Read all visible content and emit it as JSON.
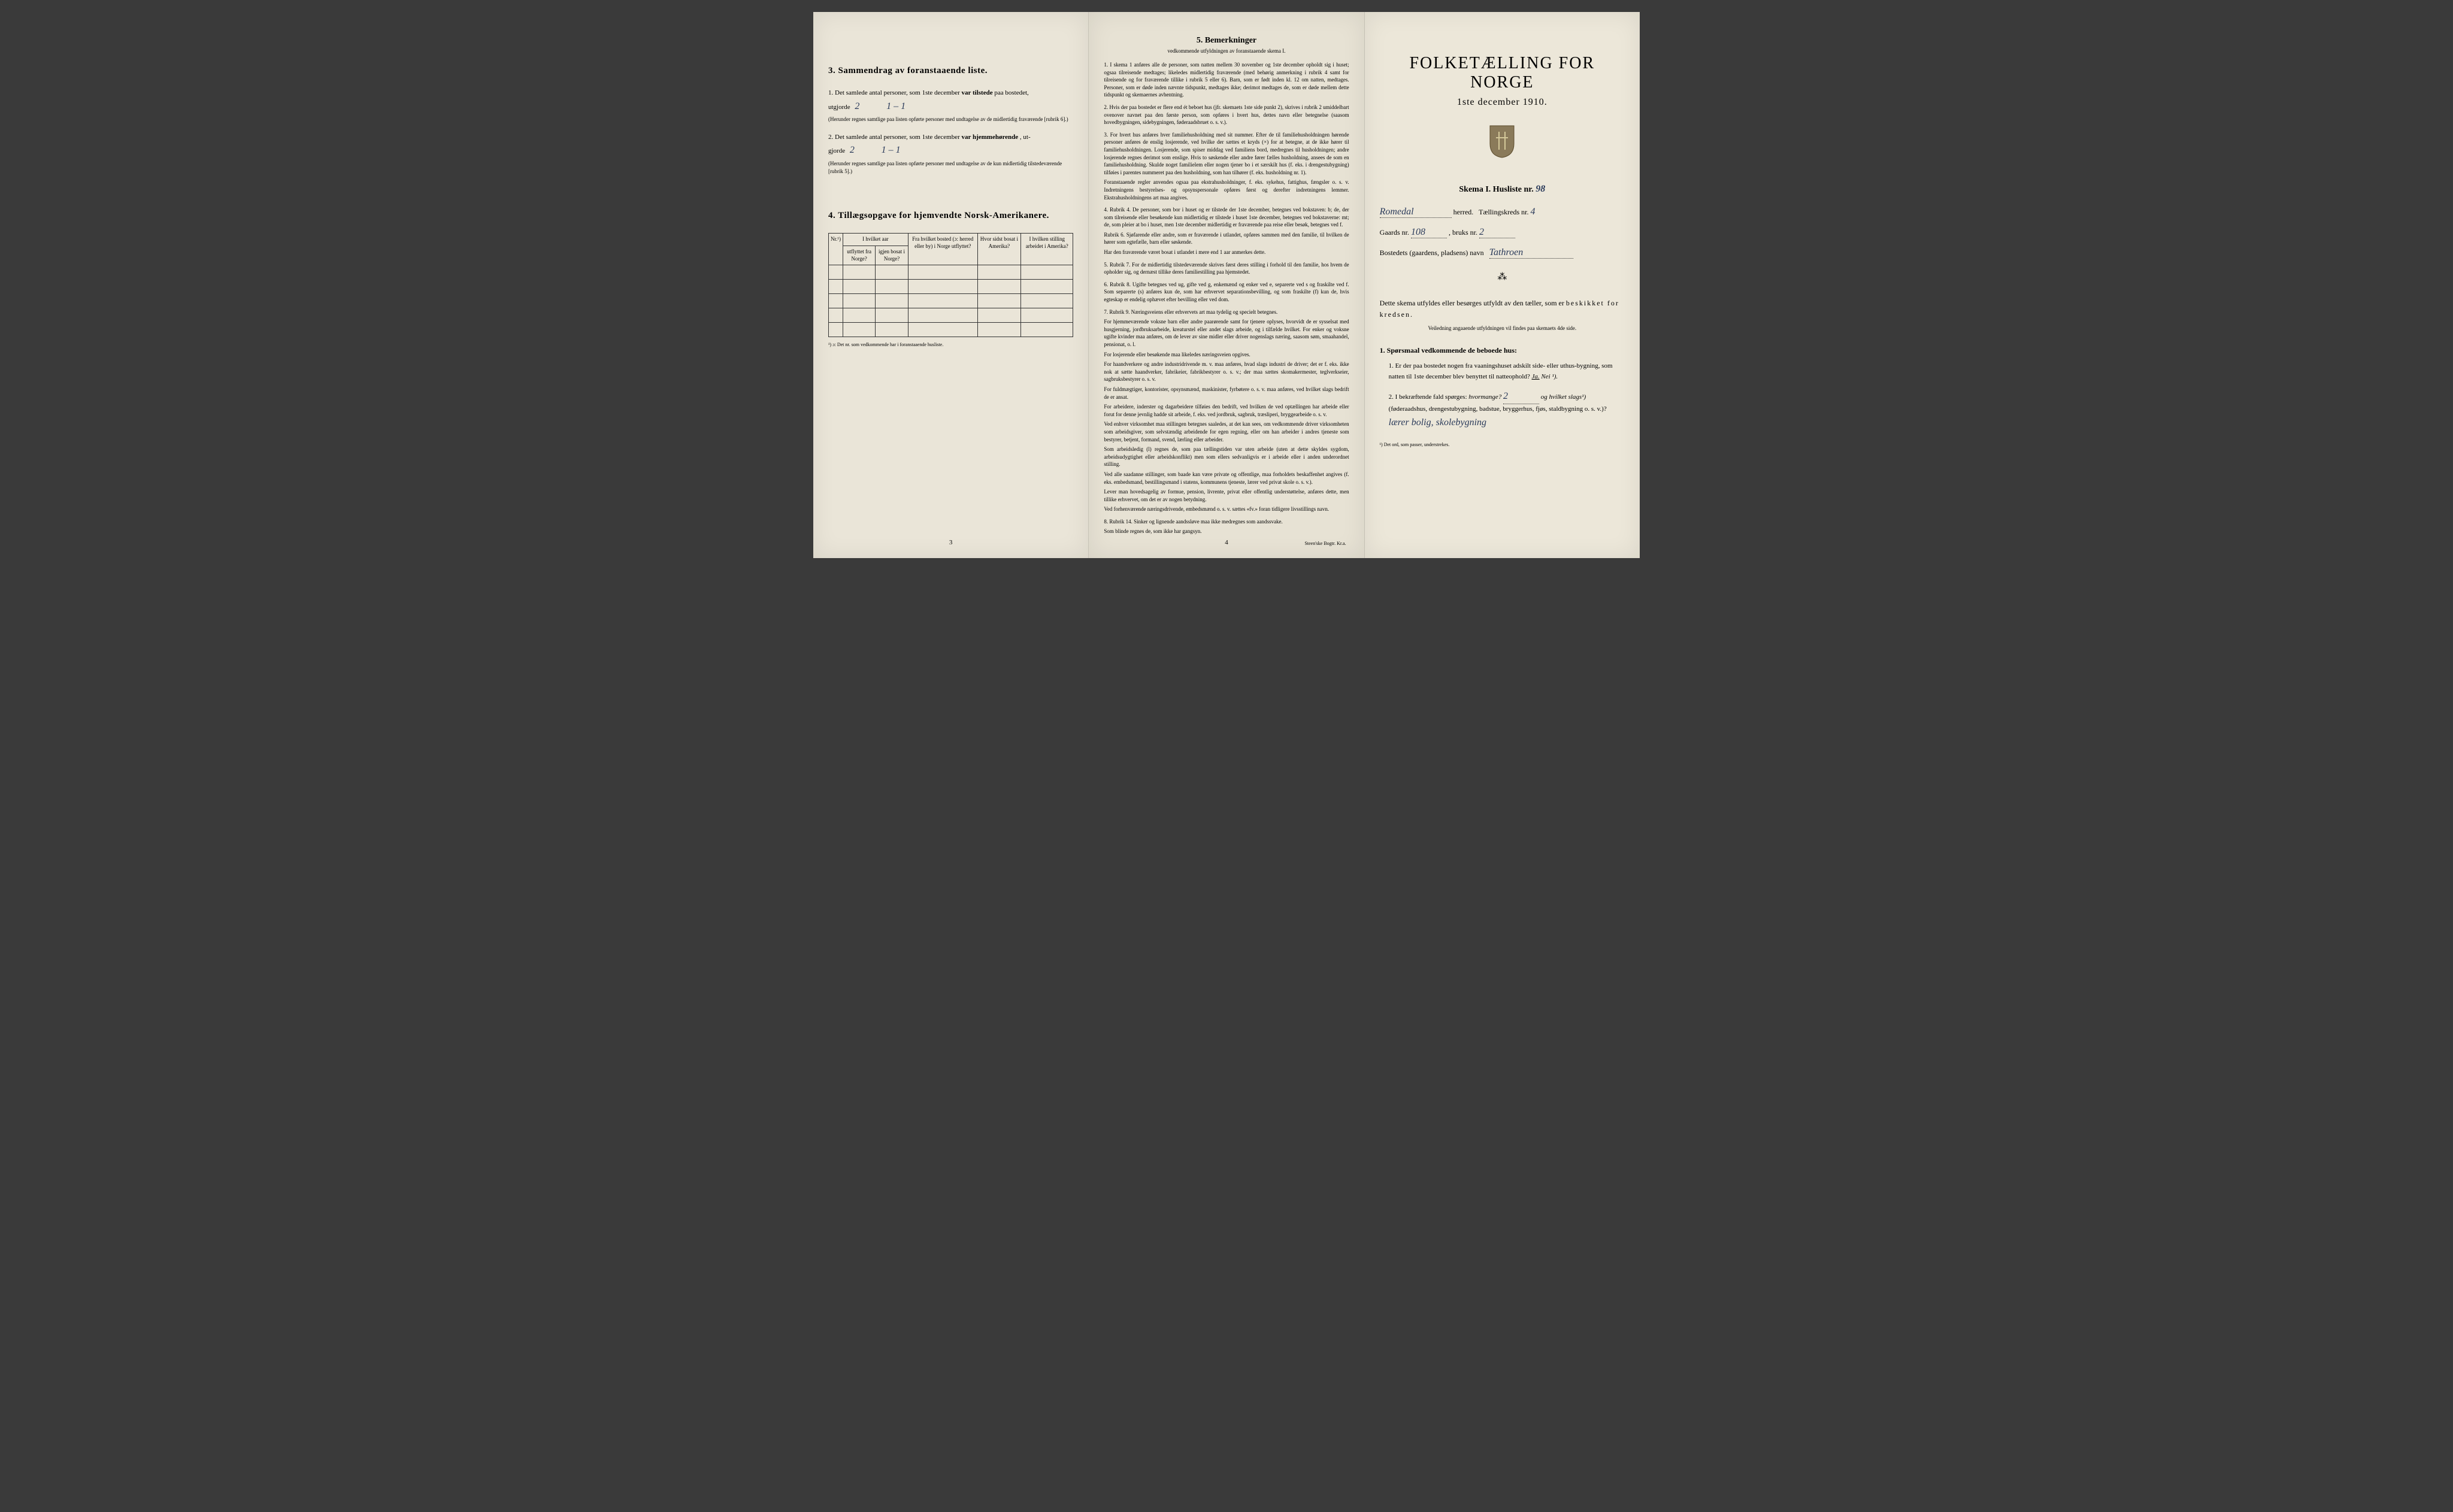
{
  "panel1": {
    "section3": {
      "heading": "3.  Sammendrag av foranstaaende liste.",
      "item1_prefix": "1.  Det samlede antal personer, som 1ste december ",
      "item1_bold": "var tilstede",
      "item1_suffix": " paa bostedet,",
      "item1_utgjorde": "utgjorde",
      "item1_val_a": "2",
      "item1_val_b": "1 – 1",
      "item1_note": "(Herunder regnes samtlige paa listen opførte personer med undtagelse av de midlertidig fraværende [rubrik 6].)",
      "item2_prefix": "2.  Det samlede antal personer, som 1ste december ",
      "item2_bold": "var hjemmehørende",
      "item2_suffix": ", ut-",
      "item2_gjorde": "gjorde",
      "item2_val_a": "2",
      "item2_val_b": "1 – 1",
      "item2_note": "(Herunder regnes samtlige paa listen opførte personer med undtagelse av de kun midlertidig tilstedeværende [rubrik 5].)"
    },
    "section4": {
      "heading": "4.  Tillægsopgave for hjemvendte Norsk-Amerikanere.",
      "col0": "Nr.¹)",
      "col1_a": "I hvilket aar",
      "col1_b": "utflyttet fra Norge?",
      "col1_c": "igjen bosat i Norge?",
      "col2": "Fra hvilket bosted (ɔ: herred eller by) i Norge utflyttet?",
      "col3": "Hvor sidst bosat i Amerika?",
      "col4": "I hvilken stilling arbeidet i Amerika?",
      "footnote": "¹) ɔ: Det nr. som vedkommende har i foranstaaende husliste."
    },
    "page_num": "3"
  },
  "panel2": {
    "heading": "5.  Bemerkninger",
    "subheading": "vedkommende utfyldningen av foranstaaende skema I.",
    "remarks": [
      {
        "n": "1.",
        "t": "I skema 1 anføres alle de personer, som natten mellem 30 november og 1ste december opholdt sig i huset; ogsaa tilreisende medtages; likeledes midlertidig fraværende (med behørig anmerkning i rubrik 4 samt for tilreisende og for fraværende tillike i rubrik 5 eller 6). Barn, som er født inden kl. 12 om natten, medtages. Personer, som er døde inden nævnte tidspunkt, medtages ikke; derimot medtages de, som er døde mellem dette tidspunkt og skemaernes avhentning."
      },
      {
        "n": "2.",
        "t": "Hvis der paa bostedet er flere end ét beboet hus (jfr. skemaets 1ste side punkt 2), skrives i rubrik 2 umiddelbart ovenover navnet paa den første person, som opføres i hvert hus, dettes navn eller betegnelse (saasom hovedbygningen, sidebygningen, føderaadsbruet o. s. v.)."
      },
      {
        "n": "3.",
        "t": "For hvert hus anføres hver familiehusholdning med sit nummer. Efter de til familiehusholdningen hørende personer anføres de enslig losjerende, ved hvilke der sættes et kryds (×) for at betegne, at de ikke hører til familiehusholdningen. Losjerende, som spiser middag ved familiens bord, medregnes til husholdningen; andre losjerende regnes derimot som enslige. Hvis to søskende eller andre fører fælles husholdning, ansees de som en familiehusholdning. Skulde noget familielem eller nogen tjener bo i et særskilt hus (f. eks. i drengestubygning) tilføies i parentes nummeret paa den husholdning, som han tilhører (f. eks. husholdning nr. 1).",
        "sub": "Foranstaaende regler anvendes ogsaa paa ekstrahusholdninger, f. eks. sykehus, fattighus, fængsler o. s. v. Indretningens bestyrelses- og opsynspersonale opføres først og derefter indretningens lemmer. Ekstrahusholdningens art maa angives."
      },
      {
        "n": "4.",
        "t": "Rubrik 4. De personer, som bor i huset og er tilstede der 1ste december, betegnes ved bokstaven: b; de, der som tilreisende eller besøkende kun midlertidig er tilstede i huset 1ste december, betegnes ved bokstaverne: mt; de, som pleier at bo i huset, men 1ste december midlertidig er fraværende paa reise eller besøk, betegnes ved f.",
        "sub": "Rubrik 6. Sjøfarende eller andre, som er fraværende i utlandet, opføres sammen med den familie, til hvilken de hører som egtefælle, barn eller søskende.",
        "sub2": "Har den fraværende været bosat i utlandet i mere end 1 aar anmerkes dette."
      },
      {
        "n": "5.",
        "t": "Rubrik 7. For de midlertidig tilstedeværende skrives først deres stilling i forhold til den familie, hos hvem de opholder sig, og dernæst tillike deres familiestilling paa hjemstedet."
      },
      {
        "n": "6.",
        "t": "Rubrik 8. Ugifte betegnes ved ug, gifte ved g, enkemænd og enker ved e, separerte ved s og fraskilte ved f. Som separerte (s) anføres kun de, som har erhvervet separationsbevilling, og som fraskilte (f) kun de, hvis egteskap er endelig ophævet efter bevilling eller ved dom."
      },
      {
        "n": "7.",
        "t": "Rubrik 9. Næringsveiens eller erhvervets art maa tydelig og specielt betegnes.",
        "sub": "For hjemmeværende voksne barn eller andre paarørende samt for tjenere oplyses, hvorvidt de er sysselsat med husgjerning, jordbruksarbeide, kreaturstel eller andet slags arbeide, og i tilfælde hvilket. For enker og voksne ugifte kvinder maa anføres, om de lever av sine midler eller driver nogenslags næring, saasom søm, smaahandel, pensionat, o. l.",
        "sub2": "For losjerende eller besøkende maa likeledes næringsveien opgives.",
        "sub3": "For haandverkere og andre industridrivende m. v. maa anføres, hvad slags industri de driver; det er f. eks. ikke nok at sætte haandverker, fabrikeier, fabrikbestyrer o. s. v.; der maa sættes skomakermester, teglverkseier, sagbruksbestyrer o. s. v.",
        "sub4": "For fuldmægtiger, kontorister, opsynsmænd, maskinister, fyrbøtere o. s. v. maa anføres, ved hvilket slags bedrift de er ansat.",
        "sub5": "For arbeidere, inderster og dagarbeidere tilføies den bedrift, ved hvilken de ved optællingen har arbeide eller forut for denne jevnlig hadde sit arbeide, f. eks. ved jordbruk, sagbruk, træsliperi, bryggearbeide o. s. v.",
        "sub6": "Ved enhver virksomhet maa stillingen betegnes saaledes, at det kan sees, om vedkommende driver virksomheten som arbeidsgiver, som selvstændig arbeidende for egen regning, eller om han arbeider i andres tjeneste som bestyrer, betjent, formand, svend, lærling eller arbeider.",
        "sub7": "Som arbeidsledig (l) regnes de, som paa tællingstiden var uten arbeide (uten at dette skyldes sygdom, arbeidsudygtighet eller arbeidskonflikt) men som ellers sedvanligvis er i arbeide eller i anden underordnet stilling.",
        "sub8": "Ved alle saadanne stillinger, som baade kan være private og offentlige, maa forholdets beskaffenhet angives (f. eks. embedsmand, bestillingsmand i statens, kommunens tjeneste, lærer ved privat skole o. s. v.).",
        "sub9": "Lever man hovedsagelig av formue, pension, livrente, privat eller offentlig understøttelse, anføres dette, men tillike erhvervet, om det er av nogen betydning.",
        "sub10": "Ved forhenværende næringsdrivende, embedsmænd o. s. v. sættes «fv.» foran tidligere livsstillings navn."
      },
      {
        "n": "8.",
        "t": "Rubrik 14. Sinker og lignende aandssløve maa ikke medregnes som aandssvake.",
        "sub": "Som blinde regnes de, som ikke har gangsyn."
      }
    ],
    "page_num": "4",
    "imprint": "Steen'ske Bogtr. Kr.a."
  },
  "panel3": {
    "title": "FOLKETÆLLING FOR NORGE",
    "date": "1ste december 1910.",
    "skema_label": "Skema I.  Husliste nr.",
    "husliste_nr": "98",
    "herred_prefix": "",
    "herred_hand": "Romedal",
    "herred_label": "herred.",
    "tkreds_label": "Tællingskreds nr.",
    "tkreds_val": "4",
    "gaards_label": "Gaards nr.",
    "gaards_val": "108",
    "bruks_label": ", bruks nr.",
    "bruks_val": "2",
    "bosted_label": "Bostedets (gaardens, pladsens) navn",
    "bosted_val": "Tathroen",
    "instruction1": "Dette skema utfyldes eller besørges utfyldt av den tæller, som er ",
    "instruction2": "beskikket for kredsen.",
    "veiledning": "Veiledning angaaende utfyldningen vil findes paa skemaets 4de side.",
    "q_heading": "1. Spørsmaal vedkommende de beboede hus:",
    "q1": "1.  Er der paa bostedet nogen fra vaaningshuset adskilt side- eller uthus-bygning, som natten til 1ste december blev benyttet til natteophold?  ",
    "q1_ja": "Ja.",
    "q1_nei": "Nei ¹).",
    "q2_prefix": "2.  I bekræftende fald spørges: ",
    "q2_hvor": "hvormange?",
    "q2_val": "2",
    "q2_og": "og hvilket slags¹)",
    "q2_paren": "(føderaadshus, drengestubygning, badstue, bryggerhus, fjøs, staldbygning o. s. v.)?",
    "q2_hand": "lærer bolig, skolebygning",
    "footnote": "¹) Det ord, som passer, understrekes."
  }
}
